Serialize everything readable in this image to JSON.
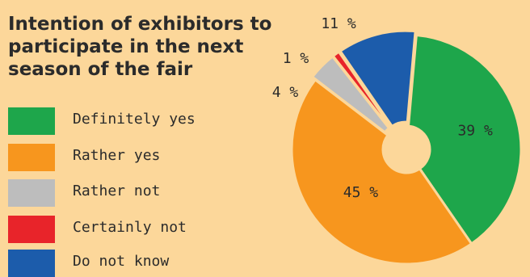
{
  "title": "Intention of exhibitors to\nparticipate in the next\nseason of the fair",
  "colors": {
    "background": "#fcd79a",
    "definitely_yes": "#1ea64b",
    "rather_yes": "#f7961e",
    "rather_not": "#bdbdbd",
    "certainly_not": "#e8242a",
    "do_not_know": "#1c5cab"
  },
  "legend": [
    {
      "label": "Definitely yes",
      "color": "#1ea64b"
    },
    {
      "label": "Rather yes",
      "color": "#f7961e"
    },
    {
      "label": "Rather not",
      "color": "#bdbdbd"
    },
    {
      "label": "Certainly not",
      "color": "#e8242a"
    },
    {
      "label": "Do not know",
      "color": "#1c5cab"
    }
  ],
  "chart_data": {
    "type": "pie",
    "title": "Intention of exhibitors to participate in the next season of the fair",
    "categories": [
      "Definitely yes",
      "Rather yes",
      "Rather not",
      "Certainly not",
      "Do not know"
    ],
    "values": [
      39,
      45,
      4,
      1,
      11
    ],
    "labels": [
      "39 %",
      "45 %",
      "4 %",
      "1 %",
      "11 %"
    ],
    "unit": "%",
    "donut_hole": true,
    "exploded": true,
    "legend_position": "left"
  }
}
